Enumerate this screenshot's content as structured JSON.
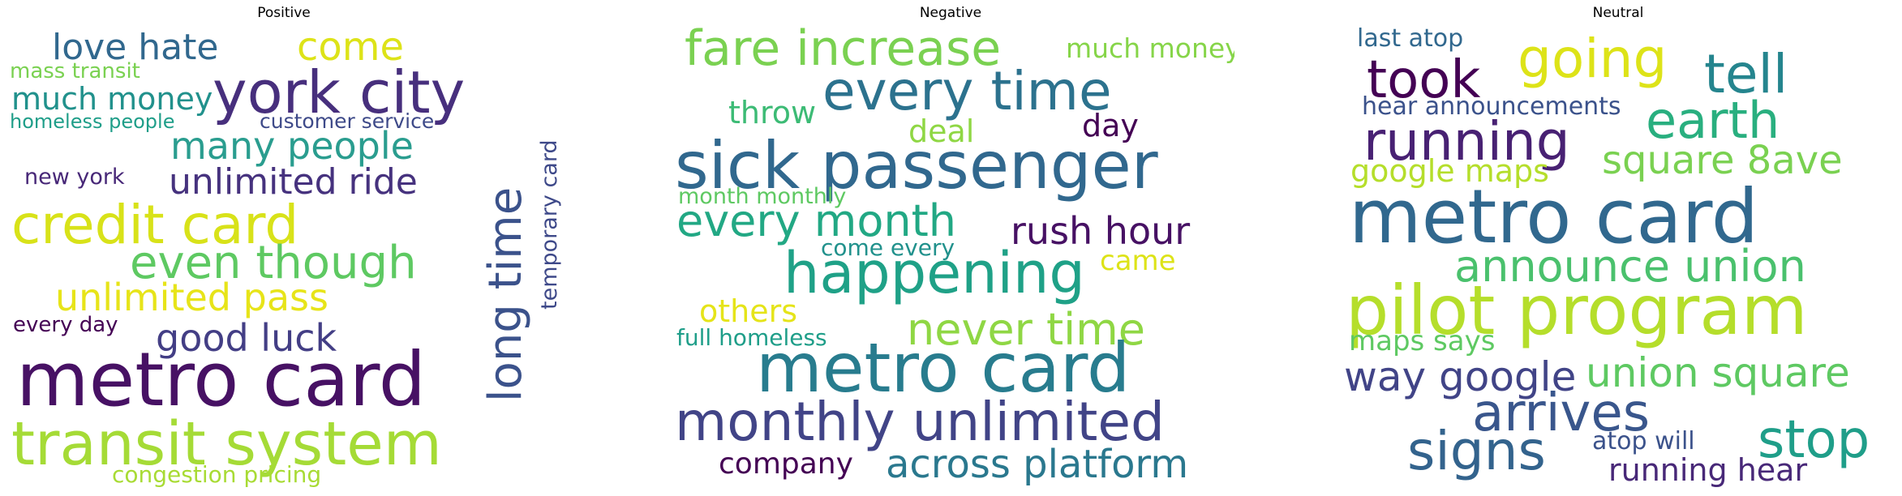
{
  "panels": [
    {
      "title": "Positive",
      "words": [
        {
          "text": "love hate",
          "color": "#31688e"
        },
        {
          "text": "come",
          "color": "#dde318"
        },
        {
          "text": "mass transit",
          "color": "#7ad151"
        },
        {
          "text": "york city",
          "color": "#472f7d"
        },
        {
          "text": "much money",
          "color": "#21918c"
        },
        {
          "text": "homeless people",
          "color": "#1f9e89"
        },
        {
          "text": "customer service",
          "color": "#3e4a89"
        },
        {
          "text": "many people",
          "color": "#2a9d8f"
        },
        {
          "text": "new york",
          "color": "#482878"
        },
        {
          "text": "unlimited ride",
          "color": "#46327e"
        },
        {
          "text": "credit card",
          "color": "#d8e219"
        },
        {
          "text": "even though",
          "color": "#5ec962"
        },
        {
          "text": "long time",
          "color": "#3b528b"
        },
        {
          "text": "temporary card",
          "color": "#3e4989"
        },
        {
          "text": "unlimited pass",
          "color": "#e7e419"
        },
        {
          "text": "every day",
          "color": "#440154"
        },
        {
          "text": "good luck",
          "color": "#433e85"
        },
        {
          "text": "metro card",
          "color": "#471164"
        },
        {
          "text": "transit system",
          "color": "#a5db36"
        },
        {
          "text": "congestion pricing",
          "color": "#a8db34"
        }
      ]
    },
    {
      "title": "Negative",
      "words": [
        {
          "text": "fare increase",
          "color": "#7ad151"
        },
        {
          "text": "much money",
          "color": "#86d549"
        },
        {
          "text": "every time",
          "color": "#2c728e"
        },
        {
          "text": "throw",
          "color": "#3cbb75"
        },
        {
          "text": "deal",
          "color": "#8fd744"
        },
        {
          "text": "day",
          "color": "#440154"
        },
        {
          "text": "sick passenger",
          "color": "#31688e"
        },
        {
          "text": "month monthly",
          "color": "#5ec962"
        },
        {
          "text": "every month",
          "color": "#22a884"
        },
        {
          "text": "rush hour",
          "color": "#471164"
        },
        {
          "text": "come every",
          "color": "#21918c"
        },
        {
          "text": "came",
          "color": "#dde318"
        },
        {
          "text": "happening",
          "color": "#1fa187"
        },
        {
          "text": "others",
          "color": "#e5e419"
        },
        {
          "text": "never time",
          "color": "#8fd744"
        },
        {
          "text": "full homeless",
          "color": "#1f9e89"
        },
        {
          "text": "metro card",
          "color": "#287c8e"
        },
        {
          "text": "monthly unlimited",
          "color": "#414487"
        },
        {
          "text": "company",
          "color": "#440154"
        },
        {
          "text": "across platform",
          "color": "#2a788e"
        }
      ]
    },
    {
      "title": "Neutral",
      "words": [
        {
          "text": "last atop",
          "color": "#31688e"
        },
        {
          "text": "going",
          "color": "#dde318"
        },
        {
          "text": "tell",
          "color": "#25858e"
        },
        {
          "text": "took",
          "color": "#440154"
        },
        {
          "text": "hear announcements",
          "color": "#3b528b"
        },
        {
          "text": "earth",
          "color": "#29af7f"
        },
        {
          "text": "running",
          "color": "#482173"
        },
        {
          "text": "square 8ave",
          "color": "#7ad151"
        },
        {
          "text": "google maps",
          "color": "#b5de2b"
        },
        {
          "text": "metro card",
          "color": "#31688e"
        },
        {
          "text": "announce union",
          "color": "#4ac16d"
        },
        {
          "text": "pilot program",
          "color": "#b5de2b"
        },
        {
          "text": "maps says",
          "color": "#5ec962"
        },
        {
          "text": "way google",
          "color": "#414487"
        },
        {
          "text": "union square",
          "color": "#5ec962"
        },
        {
          "text": "arrives",
          "color": "#39568c"
        },
        {
          "text": "stop",
          "color": "#1f9e89"
        },
        {
          "text": "atop will",
          "color": "#3b528b"
        },
        {
          "text": "signs",
          "color": "#33638d"
        },
        {
          "text": "running hear",
          "color": "#482878"
        }
      ]
    }
  ]
}
